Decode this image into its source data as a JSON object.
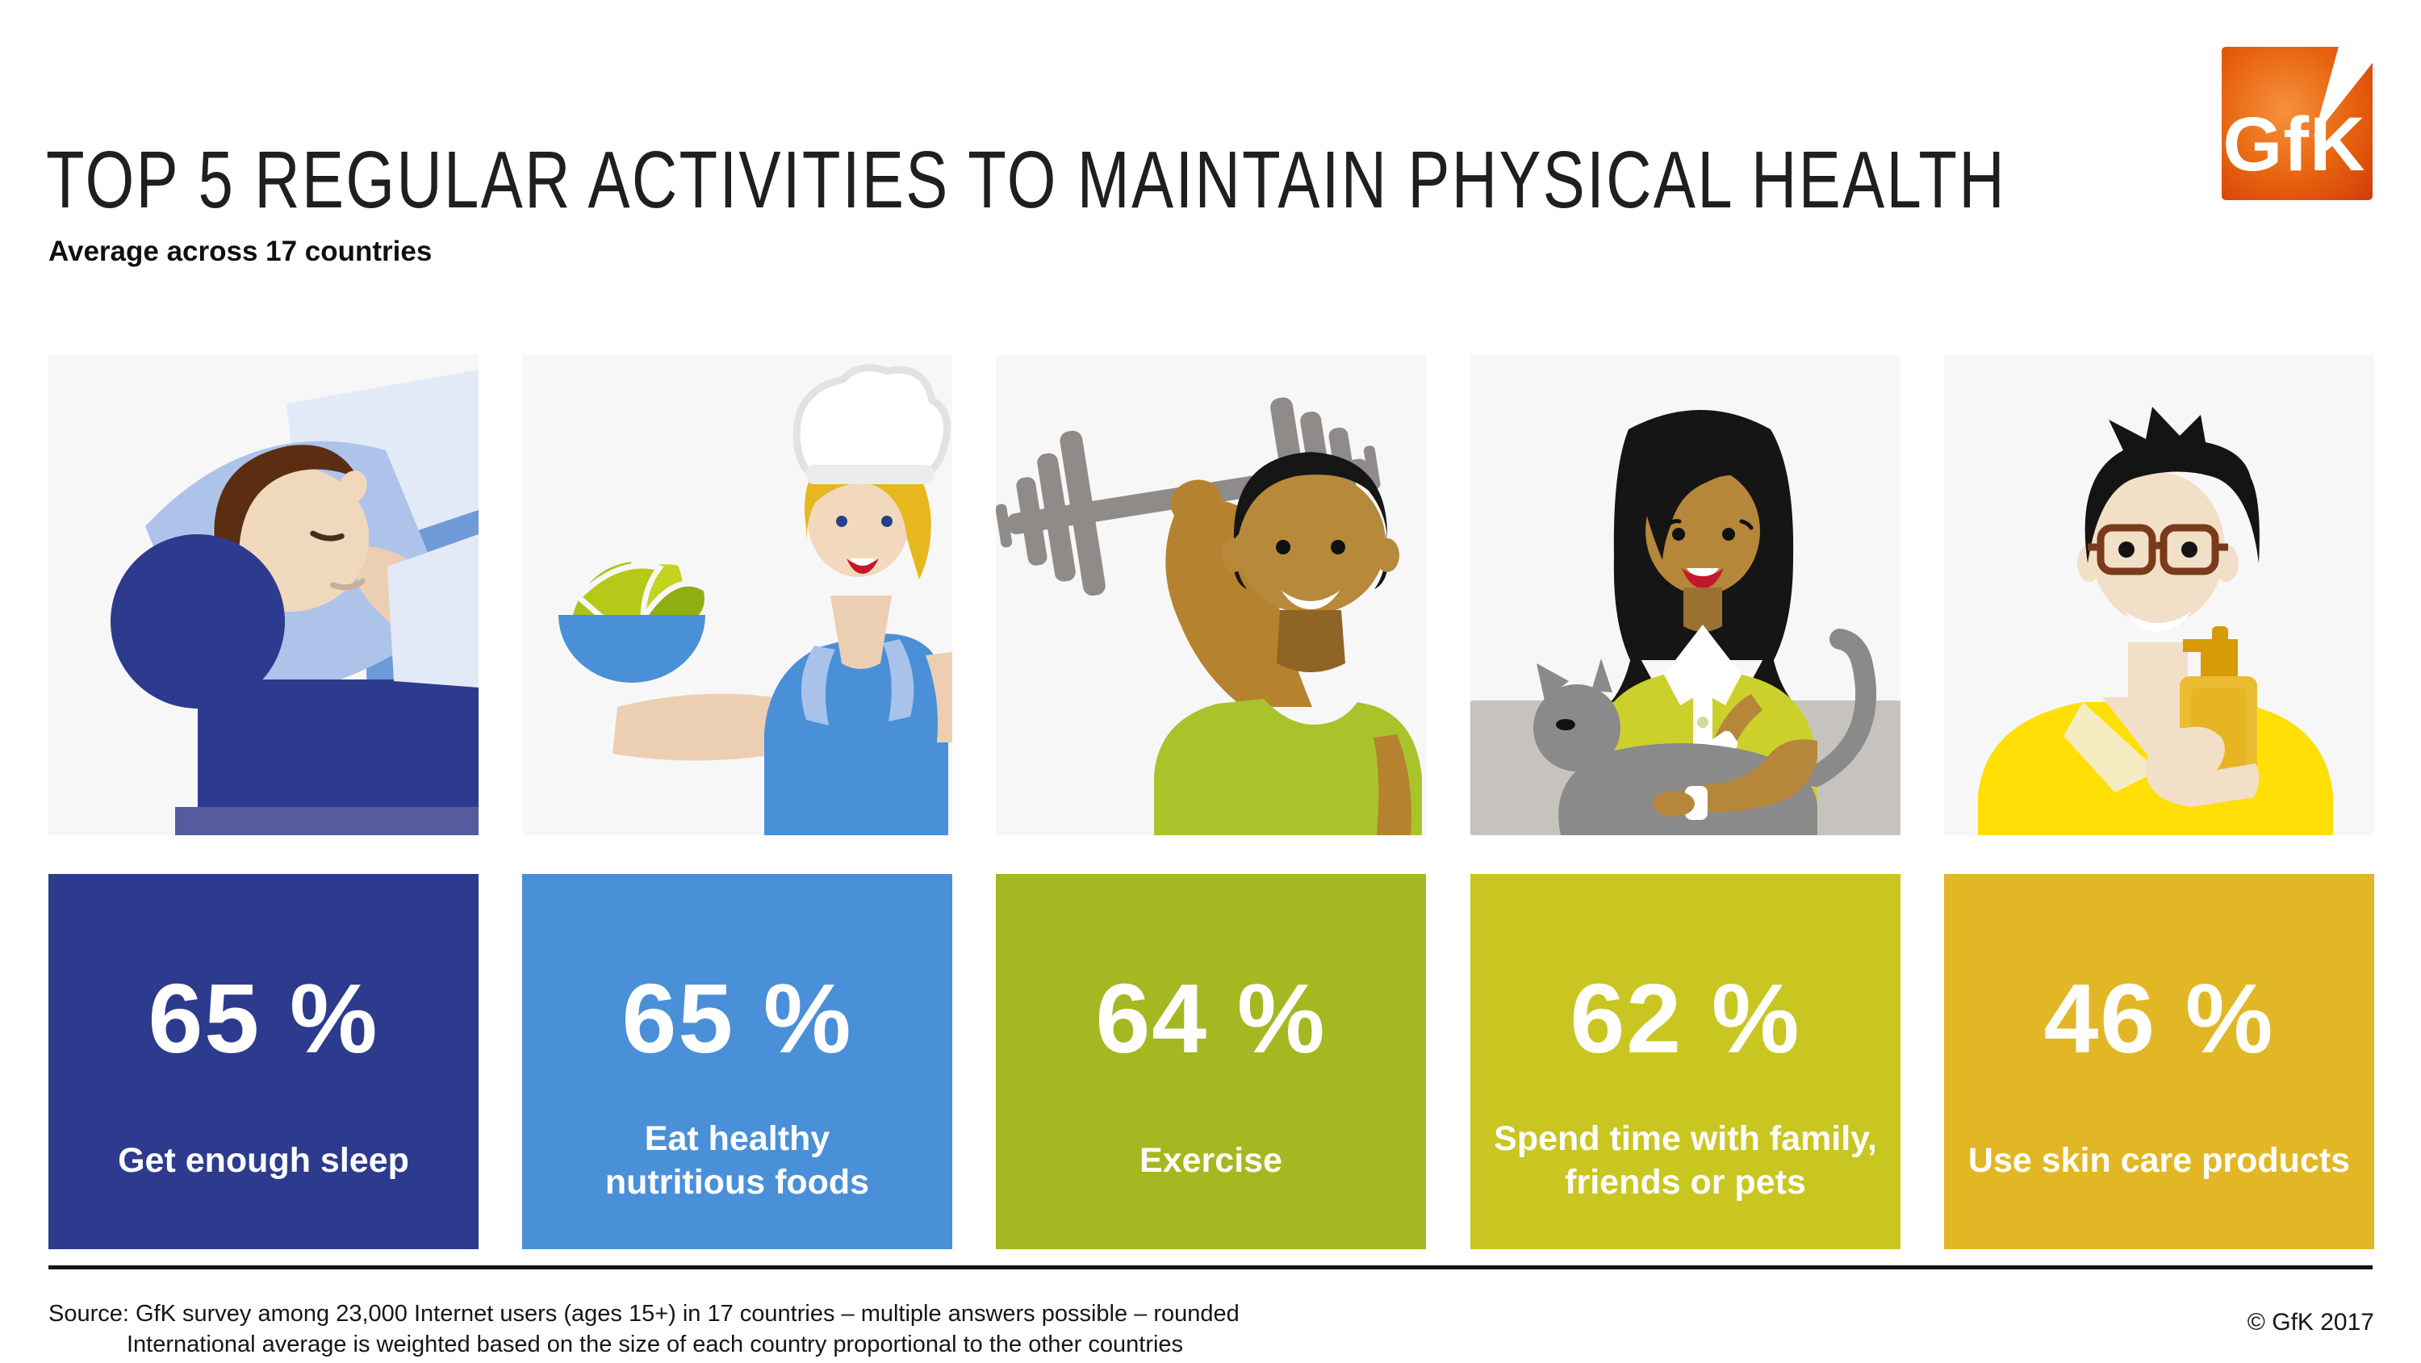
{
  "header": {
    "title": "TOP 5 REGULAR ACTIVITIES TO MAINTAIN PHYSICAL HEALTH",
    "subtitle": "Average across 17 countries",
    "logo": {
      "text": "GfK",
      "color_center": "#f6913d",
      "color_mid": "#e8640f",
      "color_edge": "#d4400a"
    }
  },
  "chart_data": {
    "type": "bar",
    "title": "Top 5 regular activities to maintain physical health",
    "subtitle": "Average across 17 countries",
    "unit": "%",
    "categories": [
      "Get enough sleep",
      "Eat healthy nutritious foods",
      "Exercise",
      "Spend time with family, friends or pets",
      "Use skin care products"
    ],
    "values": [
      65,
      65,
      64,
      62,
      46
    ],
    "bar_colors": [
      "#2d3b8e",
      "#4a90d8",
      "#a5b822",
      "#c9c622",
      "#e2b725"
    ],
    "legend": "none",
    "grid": "off"
  },
  "activities": [
    {
      "value_label": "65 %",
      "label": "Get enough sleep",
      "label_lines": [
        "Get enough sleep"
      ],
      "color": "#2d3b8e",
      "illustration": "sleeping-person"
    },
    {
      "value_label": "65 %",
      "label": "Eat healthy nutritious foods",
      "label_lines": [
        "Eat healthy",
        "nutritious foods"
      ],
      "color": "#4a90d8",
      "illustration": "chef-with-salad-bowl"
    },
    {
      "value_label": "64 %",
      "label": "Exercise",
      "label_lines": [
        "Exercise"
      ],
      "color": "#a5b822",
      "illustration": "man-lifting-dumbbell"
    },
    {
      "value_label": "62 %",
      "label": "Spend time with family, friends or pets",
      "label_lines": [
        "Spend time with family,",
        "friends or pets"
      ],
      "color": "#c9c622",
      "illustration": "woman-with-cat"
    },
    {
      "value_label": "46 %",
      "label": "Use skin care products",
      "label_lines": [
        "Use skin care products"
      ],
      "color": "#e2b725",
      "illustration": "man-with-skincare-product"
    }
  ],
  "footer": {
    "source_line1": "Source: GfK survey among 23,000 Internet users (ages 15+) in 17 countries – multiple answers possible – rounded",
    "source_line2": "International average is weighted based on the size of each country proportional to the other countries",
    "copyright": "© GfK 2017"
  }
}
